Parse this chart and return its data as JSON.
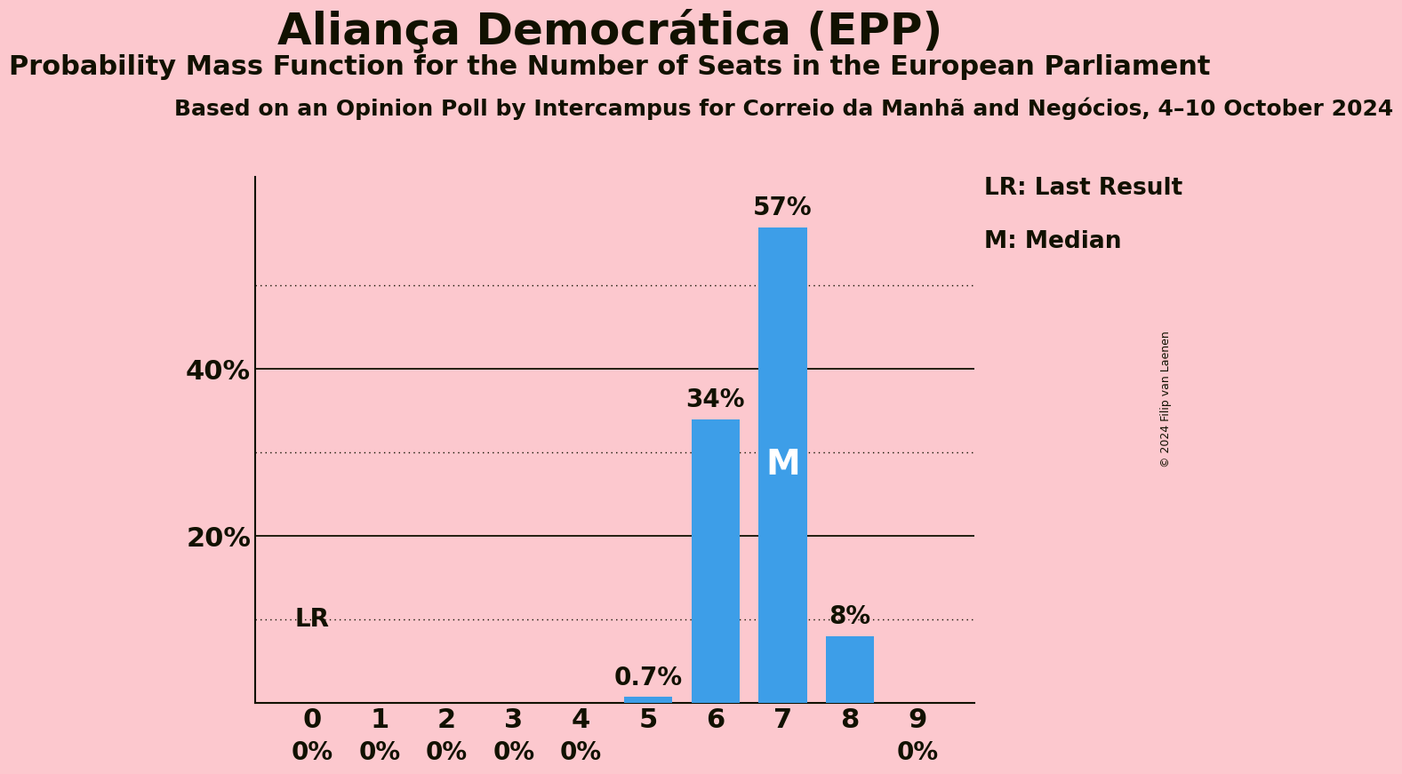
{
  "title": "Aliança Democrática (EPP)",
  "subtitle": "Probability Mass Function for the Number of Seats in the European Parliament",
  "source_line": "Based on an Opinion Poll by Intercampus for Correio da Manhã and Negócios, 4–10 October 2024",
  "copyright": "© 2024 Filip van Laenen",
  "categories": [
    0,
    1,
    2,
    3,
    4,
    5,
    6,
    7,
    8,
    9
  ],
  "values": [
    0.0,
    0.0,
    0.0,
    0.0,
    0.0,
    0.7,
    34.0,
    57.0,
    8.0,
    0.0
  ],
  "bar_color": "#3d9ee8",
  "background_color": "#fcc8ce",
  "text_color": "#111100",
  "bar_labels": [
    "0%",
    "0%",
    "0%",
    "0%",
    "0%",
    "0.7%",
    "34%",
    "57%",
    "8%",
    "0%"
  ],
  "median_bar_idx": 7,
  "lr_bar_idx": 6,
  "legend_lr": "LR: Last Result",
  "legend_m": "M: Median",
  "solid_gridlines": [
    0,
    20,
    40
  ],
  "dotted_gridlines": [
    10,
    30,
    50
  ],
  "ylim": [
    0,
    63
  ],
  "bar_label_fontsize": 20,
  "title_fontsize": 36,
  "subtitle_fontsize": 22,
  "source_fontsize": 18,
  "axis_tick_fontsize": 22,
  "legend_fontsize": 19,
  "copyright_fontsize": 9,
  "figsize": [
    11.39,
    9.24
  ]
}
